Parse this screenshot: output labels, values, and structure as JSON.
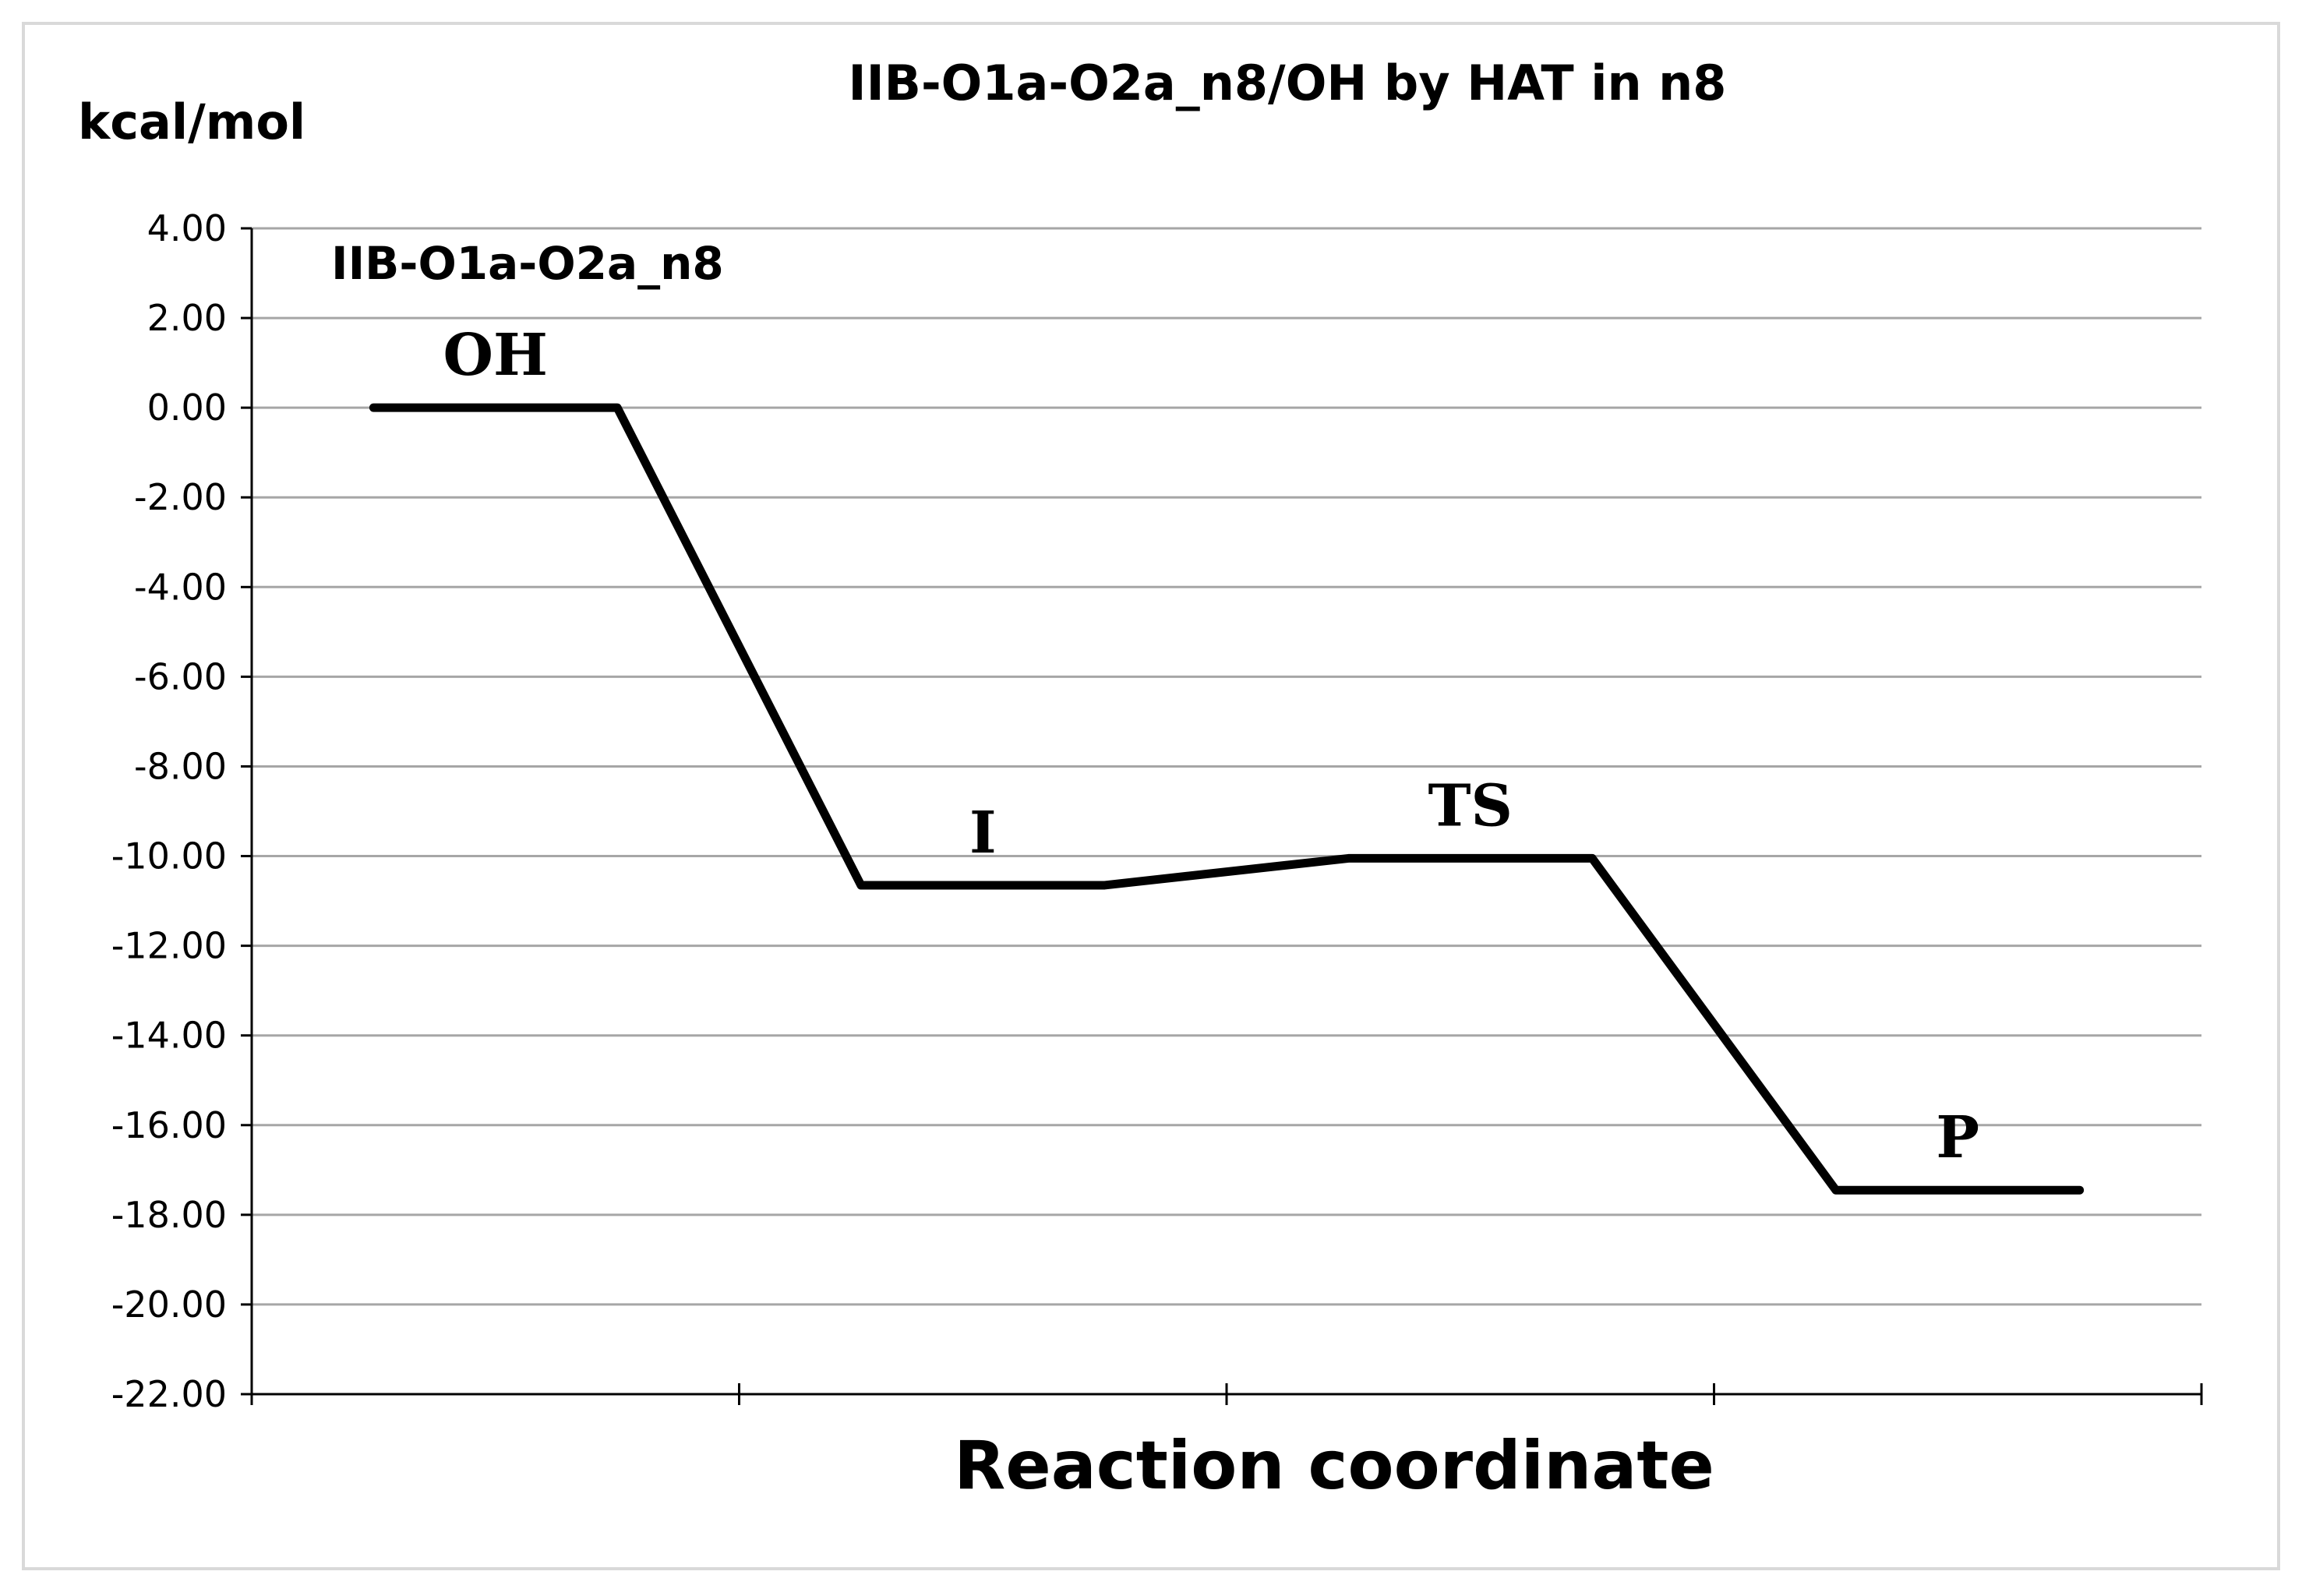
{
  "chart_data": {
    "type": "line",
    "title": "IIB-O1a-O2a_n8/OH by HAT in n8",
    "ylabel": "kcal/mol",
    "xlabel": "Reaction coordinate",
    "ylim": [
      -22,
      4
    ],
    "ytick_step": 2,
    "yticks": [
      "4.00",
      "2.00",
      "0.00",
      "-2.00",
      "-4.00",
      "-6.00",
      "-8.00",
      "-10.00",
      "-12.00",
      "-14.00",
      "-16.00",
      "-18.00",
      "-20.00",
      "-22.00"
    ],
    "x_categories": 4,
    "grid": true,
    "series": [
      {
        "name": "IIB-O1a-O2a_n8",
        "color": "#000000",
        "x": [
          0.25,
          0.75,
          1.25,
          1.75,
          2.25,
          2.75,
          3.25,
          3.75
        ],
        "values": [
          0.0,
          0.0,
          -10.65,
          -10.65,
          -10.05,
          -10.05,
          -17.45,
          -17.45
        ]
      }
    ],
    "annotations": [
      {
        "text": "OH",
        "x": 0.5,
        "y": 0.0
      },
      {
        "text": "I",
        "x": 1.5,
        "y": -10.65
      },
      {
        "text": "TS",
        "x": 2.5,
        "y": -10.05
      },
      {
        "text": "P",
        "x": 3.5,
        "y": -17.45
      }
    ]
  }
}
